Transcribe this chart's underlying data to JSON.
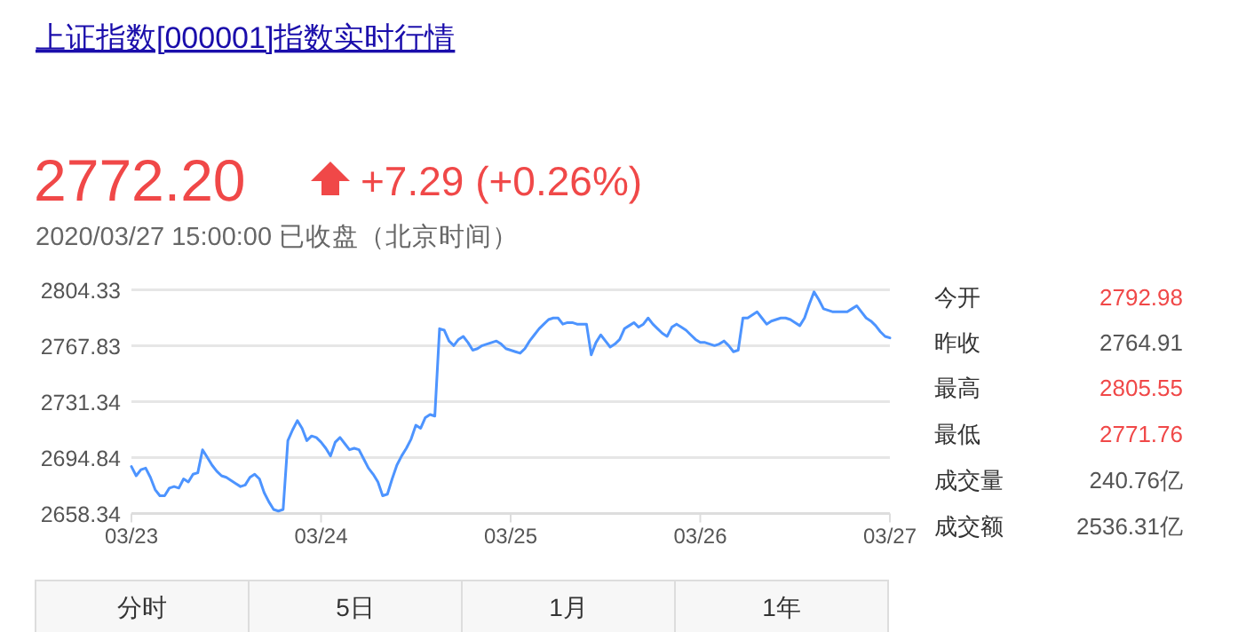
{
  "chart_data": [
    {
      "type": "line",
      "title": "上证指数[000001]指数实时行情",
      "annotations": [
        "2772.20",
        "+7.29 (+0.26%)",
        "2020/03/27 15:00:00 已收盘（北京时间）",
        "分时",
        "5日",
        "1月",
        "1年"
      ],
      "categories": [
        "03/23",
        null,
        null,
        null,
        null,
        null,
        null,
        null,
        null,
        null,
        null,
        null,
        null,
        null,
        null,
        null,
        null,
        null,
        null,
        null,
        null,
        null,
        null,
        null,
        null,
        null,
        null,
        null,
        null,
        null,
        null,
        null,
        null,
        null,
        null,
        null,
        null,
        null,
        null,
        null,
        "03/24",
        null,
        null,
        null,
        null,
        null,
        null,
        null,
        null,
        null,
        null,
        null,
        null,
        null,
        null,
        null,
        null,
        null,
        null,
        null,
        null,
        null,
        null,
        null,
        null,
        null,
        null,
        null,
        null,
        null,
        null,
        null,
        null,
        null,
        null,
        null,
        null,
        null,
        null,
        null,
        "03/25",
        null,
        null,
        null,
        null,
        null,
        null,
        null,
        null,
        null,
        null,
        null,
        null,
        null,
        null,
        null,
        null,
        null,
        null,
        null,
        null,
        null,
        null,
        null,
        null,
        null,
        null,
        null,
        null,
        null,
        null,
        null,
        null,
        null,
        null,
        null,
        null,
        null,
        null,
        null,
        "03/26",
        null,
        null,
        null,
        null,
        null,
        null,
        null,
        null,
        null,
        null,
        null,
        null,
        null,
        null,
        null,
        null,
        null,
        null,
        null,
        null,
        null,
        null,
        null,
        null,
        null,
        null,
        null,
        null,
        null,
        null,
        null,
        null,
        null,
        null,
        null,
        null,
        null,
        null,
        null,
        "03/27"
      ],
      "series": [
        {
          "color": "#4d94ff",
          "values": [
            2689,
            2683,
            2687,
            2688,
            2682,
            2674,
            2670,
            2670,
            2675,
            2676,
            2675,
            2681,
            2679,
            2684,
            2685,
            2700,
            2695,
            2690,
            2686,
            2683,
            2682,
            2680,
            2678,
            2676,
            2677,
            2682,
            2684,
            2681,
            2672,
            2666,
            2661,
            2660,
            2661,
            2706,
            2713,
            2719,
            2714,
            2706,
            2709,
            2708,
            2705,
            2701,
            2696,
            2705,
            2708,
            2704,
            2700,
            2701,
            2700,
            2694,
            2688,
            2684,
            2679,
            2670,
            2671,
            2681,
            2690,
            2696,
            2701,
            2707,
            2716,
            2714,
            2721,
            2723,
            2722,
            2779,
            2778,
            2771,
            2768,
            2772,
            2774,
            2770,
            2765,
            2766,
            2768,
            2769,
            2770,
            2771,
            2769,
            2766,
            2765,
            2764,
            2763,
            2766,
            2771,
            2775,
            2779,
            2782,
            2785,
            2786,
            2786,
            2782,
            2783,
            2783,
            2782,
            2782,
            2782,
            2762,
            2770,
            2775,
            2771,
            2767,
            2769,
            2772,
            2779,
            2781,
            2783,
            2780,
            2782,
            2786,
            2782,
            2779,
            2776,
            2774,
            2780,
            2782,
            2780,
            2778,
            2775,
            2772,
            2770,
            2770,
            2769,
            2768,
            2769,
            2771,
            2768,
            2764,
            2765,
            2786,
            2786,
            2788,
            2790,
            2786,
            2782,
            2784,
            2785,
            2786,
            2786,
            2785,
            2783,
            2781,
            2786,
            2795,
            2803,
            2798,
            2792,
            2791,
            2790,
            2790,
            2790,
            2790,
            2792,
            2794,
            2790,
            2786,
            2784,
            2781,
            2777,
            2774,
            2773
          ]
        }
      ],
      "ylim": [
        2658.34,
        2804.33
      ],
      "yticks": [
        2658.34,
        2694.84,
        2731.34,
        2767.83,
        2804.33
      ],
      "grid": "y"
    },
    {
      "type": "other",
      "annotations": [
        "今开",
        "2792.98",
        "昨收",
        "2764.91",
        "最高",
        "2805.55",
        "最低",
        "2771.76",
        "成交量",
        "240.76亿",
        "成交额",
        "2536.31亿"
      ],
      "colors": [
        "#f04848",
        "#555555",
        "#f04848",
        "#f04848",
        "#555555",
        "#555555"
      ]
    }
  ]
}
